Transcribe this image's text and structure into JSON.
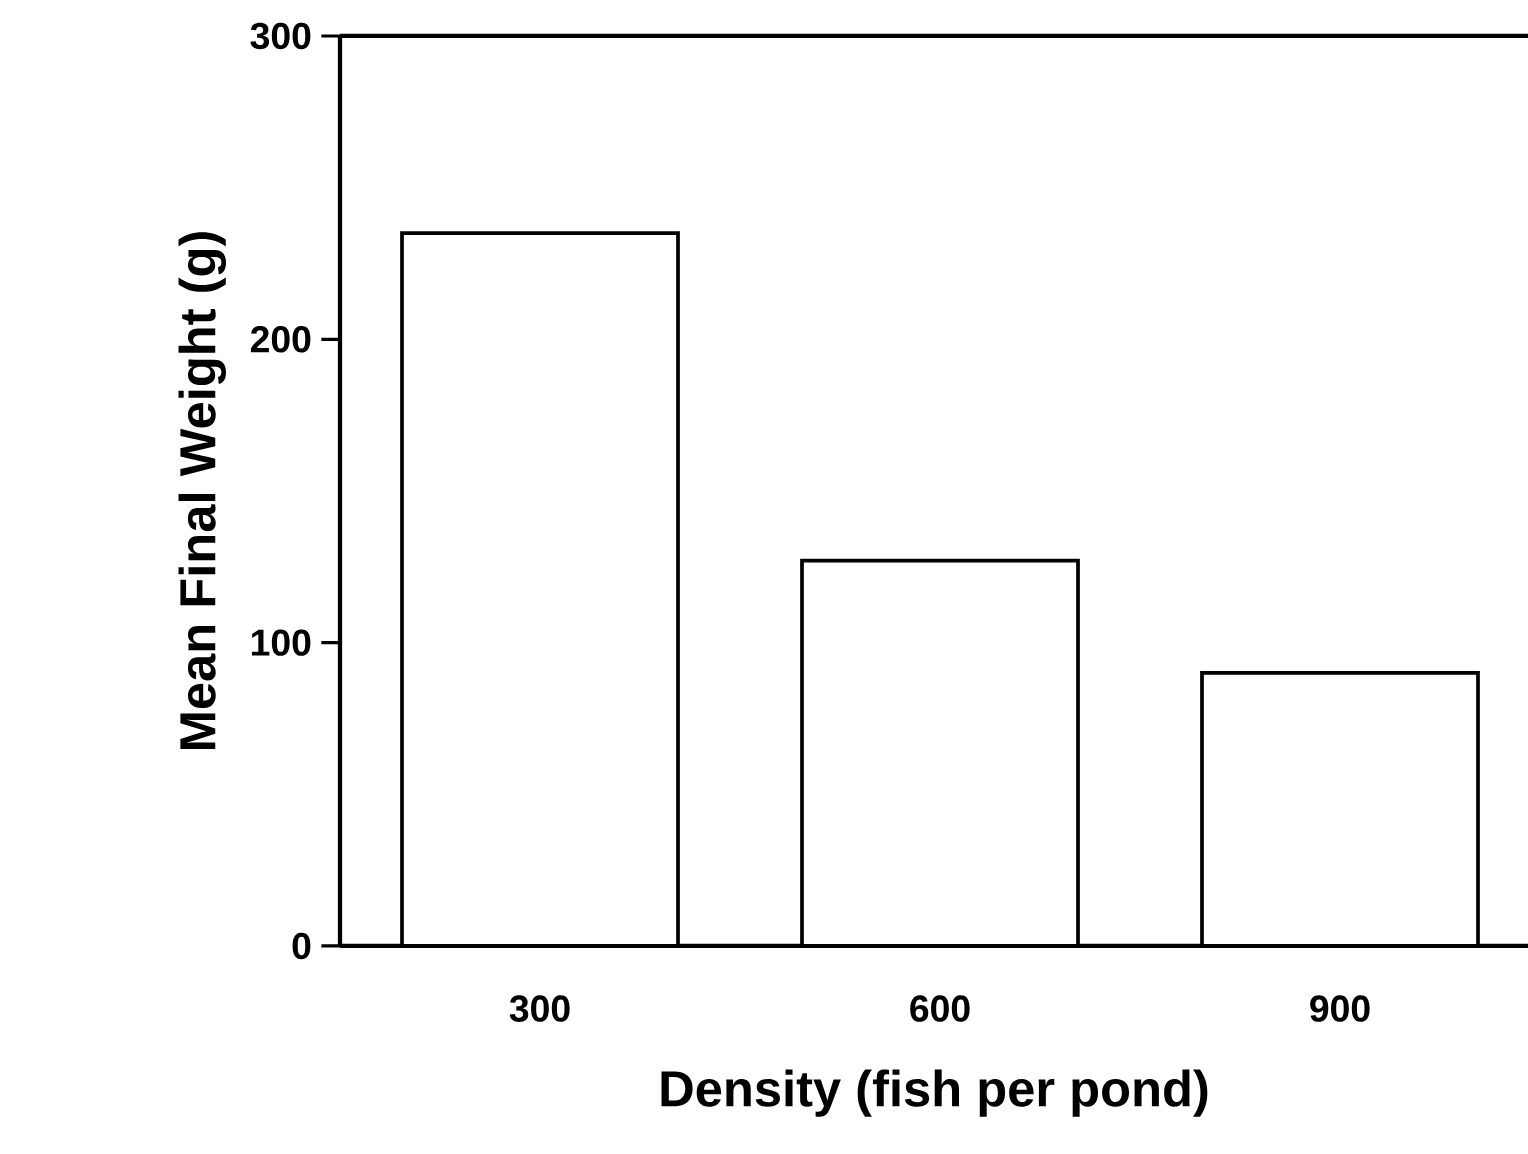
{
  "chart_data": {
    "type": "bar",
    "xlabel": "Density (fish per pond)",
    "ylabel": "Mean Final Weight (g)",
    "categories": [
      "300",
      "600",
      "900"
    ],
    "values": [
      235,
      127,
      90
    ],
    "color": "#ffffff",
    "ylim": [
      0,
      300
    ],
    "yticks": [
      0,
      100,
      200,
      300
    ],
    "grid": false
  }
}
